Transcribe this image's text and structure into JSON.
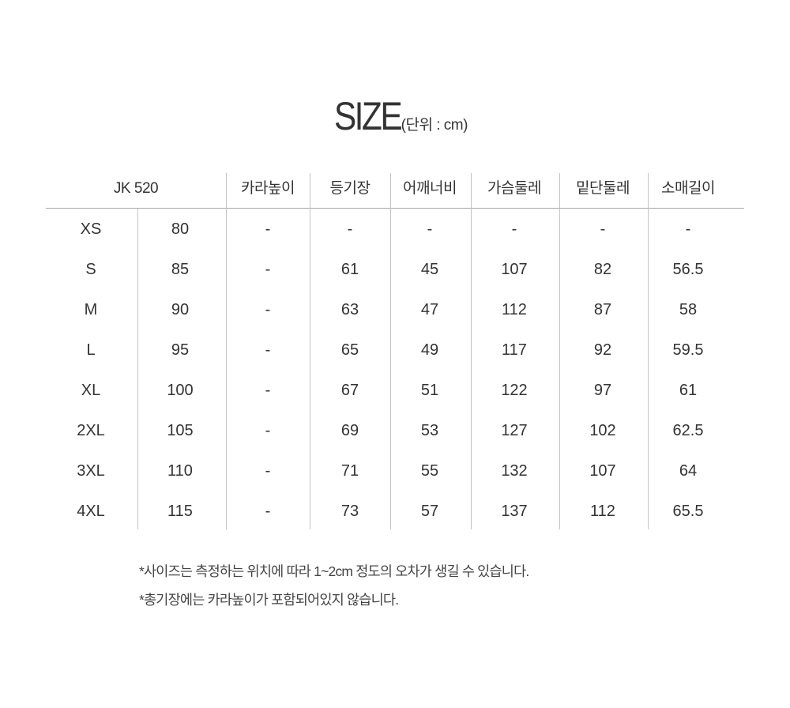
{
  "title": {
    "main": "SIZE",
    "unit": "(단위 : cm)"
  },
  "table": {
    "headers": [
      "JK 520",
      "카라높이",
      "등기장",
      "어깨너비",
      "가슴둘레",
      "밑단둘레",
      "소매길이"
    ],
    "rows": [
      [
        "XS",
        "80",
        "-",
        "-",
        "-",
        "-",
        "-",
        "-"
      ],
      [
        "S",
        "85",
        "-",
        "61",
        "45",
        "107",
        "82",
        "56.5"
      ],
      [
        "M",
        "90",
        "-",
        "63",
        "47",
        "112",
        "87",
        "58"
      ],
      [
        "L",
        "95",
        "-",
        "65",
        "49",
        "117",
        "92",
        "59.5"
      ],
      [
        "XL",
        "100",
        "-",
        "67",
        "51",
        "122",
        "97",
        "61"
      ],
      [
        "2XL",
        "105",
        "-",
        "69",
        "53",
        "127",
        "102",
        "62.5"
      ],
      [
        "3XL",
        "110",
        "-",
        "71",
        "55",
        "132",
        "107",
        "64"
      ],
      [
        "4XL",
        "115",
        "-",
        "73",
        "57",
        "137",
        "112",
        "65.5"
      ]
    ]
  },
  "notes": [
    "*사이즈는 측정하는 위치에 따라 1~2cm 정도의 오차가 생길 수 있습니다.",
    "*총기장에는 카라높이가 포함되어있지 않습니다."
  ]
}
